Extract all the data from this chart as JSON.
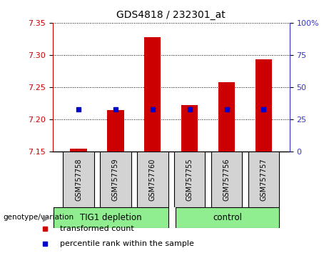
{
  "title": "GDS4818 / 232301_at",
  "samples": [
    "GSM757758",
    "GSM757759",
    "GSM757760",
    "GSM757755",
    "GSM757756",
    "GSM757757"
  ],
  "group_labels": [
    "TIG1 depletion",
    "control"
  ],
  "bar_base": 7.15,
  "transformed_counts": [
    7.155,
    7.215,
    7.328,
    7.222,
    7.258,
    7.293
  ],
  "percentile_ranks": [
    33,
    33,
    33,
    33,
    33,
    33
  ],
  "ylim": [
    7.15,
    7.35
  ],
  "ylim_right": [
    0,
    100
  ],
  "yticks_left": [
    7.15,
    7.2,
    7.25,
    7.3,
    7.35
  ],
  "yticks_right": [
    0,
    25,
    50,
    75,
    100
  ],
  "bar_color": "#cc0000",
  "dot_color": "#0000cc",
  "axis_left_color": "#cc0000",
  "axis_right_color": "#3333cc",
  "group_divider": 3,
  "genotype_label": "genotype/variation",
  "legend_items": [
    "transformed count",
    "percentile rank within the sample"
  ],
  "legend_colors": [
    "#cc0000",
    "#0000cc"
  ],
  "bar_width": 0.45,
  "sample_box_color": "#d3d3d3",
  "group_box_color": "#90ee90",
  "right_tick_labels": [
    "0",
    "25",
    "50",
    "75",
    "100%"
  ]
}
